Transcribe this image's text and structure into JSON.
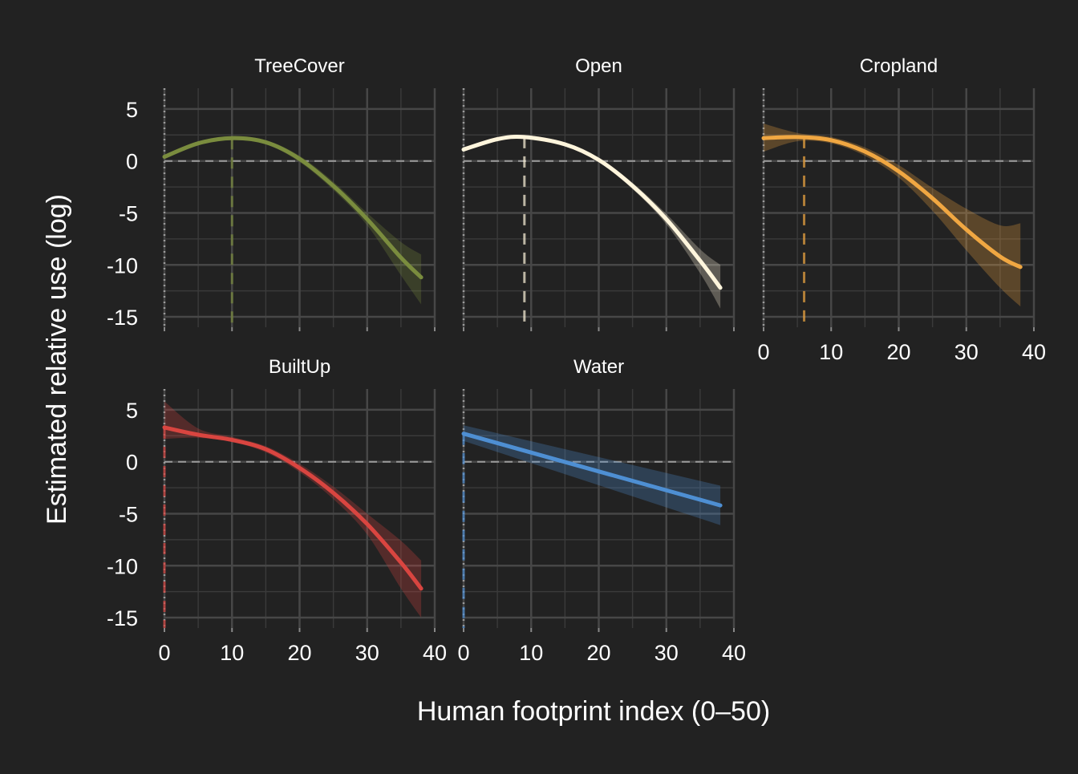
{
  "chart_data": {
    "type": "line",
    "xlabel": "Human footprint index (0–50)",
    "ylabel": "Estimated relative use (log)",
    "xlim": [
      0,
      40
    ],
    "ylim": [
      -16,
      7
    ],
    "x_ticks": [
      "0",
      "10",
      "20",
      "30",
      "40"
    ],
    "y_ticks": [
      "5",
      "0",
      "-5",
      "-10",
      "-15"
    ],
    "grid": true,
    "background": "#222222",
    "panels": [
      {
        "name": "TreeCover",
        "color": "#7a8c3e",
        "peak_x": 10,
        "x": [
          0,
          5,
          10,
          15,
          20,
          25,
          30,
          35,
          38
        ],
        "y": [
          0.4,
          1.7,
          2.2,
          1.8,
          0.2,
          -2.4,
          -5.6,
          -9.3,
          -11.2
        ],
        "lower": [
          0.2,
          1.6,
          2.0,
          1.6,
          -0.1,
          -2.8,
          -6.2,
          -11.0,
          -13.8
        ],
        "upper": [
          0.6,
          1.9,
          2.4,
          2.0,
          0.5,
          -2.0,
          -5.0,
          -7.8,
          -9.0
        ]
      },
      {
        "name": "Open",
        "color": "#fff5dc",
        "peak_x": 9,
        "x": [
          0,
          5,
          9,
          15,
          20,
          25,
          30,
          35,
          38
        ],
        "y": [
          1.1,
          2.1,
          2.3,
          1.6,
          0.1,
          -2.4,
          -5.6,
          -9.6,
          -12.2
        ],
        "lower": [
          0.9,
          2.0,
          2.2,
          1.5,
          -0.1,
          -2.7,
          -6.1,
          -10.8,
          -14.2
        ],
        "upper": [
          1.3,
          2.3,
          2.5,
          1.8,
          0.3,
          -2.1,
          -5.1,
          -8.5,
          -10.0
        ]
      },
      {
        "name": "Cropland",
        "color": "#f0a742",
        "peak_x": 6,
        "x": [
          0,
          5,
          10,
          15,
          20,
          25,
          30,
          35,
          38
        ],
        "y": [
          2.2,
          2.3,
          2.0,
          0.9,
          -1.0,
          -3.6,
          -6.6,
          -9.2,
          -10.2
        ],
        "lower": [
          0.9,
          1.9,
          1.7,
          0.5,
          -1.6,
          -4.8,
          -8.6,
          -12.2,
          -14.0
        ],
        "upper": [
          3.6,
          2.7,
          2.3,
          1.3,
          -0.4,
          -2.6,
          -4.6,
          -6.2,
          -6.0
        ]
      },
      {
        "name": "BuiltUp",
        "color": "#d94540",
        "peak_x": 0,
        "x": [
          0,
          5,
          10,
          15,
          20,
          25,
          30,
          35,
          38
        ],
        "y": [
          3.3,
          2.6,
          2.1,
          1.2,
          -0.6,
          -3.0,
          -6.0,
          -9.7,
          -12.2
        ],
        "lower": [
          2.2,
          2.3,
          1.9,
          0.9,
          -1.0,
          -3.6,
          -7.0,
          -12.2,
          -15.0
        ],
        "upper": [
          5.8,
          3.2,
          2.4,
          1.5,
          -0.2,
          -2.4,
          -5.0,
          -7.6,
          -9.5
        ]
      },
      {
        "name": "Water",
        "color": "#4e8fd3",
        "peak_x": 0,
        "x": [
          0,
          38
        ],
        "y": [
          2.7,
          -4.2
        ],
        "lower": [
          2.0,
          -6.1
        ],
        "upper": [
          3.5,
          -2.3
        ]
      }
    ]
  }
}
